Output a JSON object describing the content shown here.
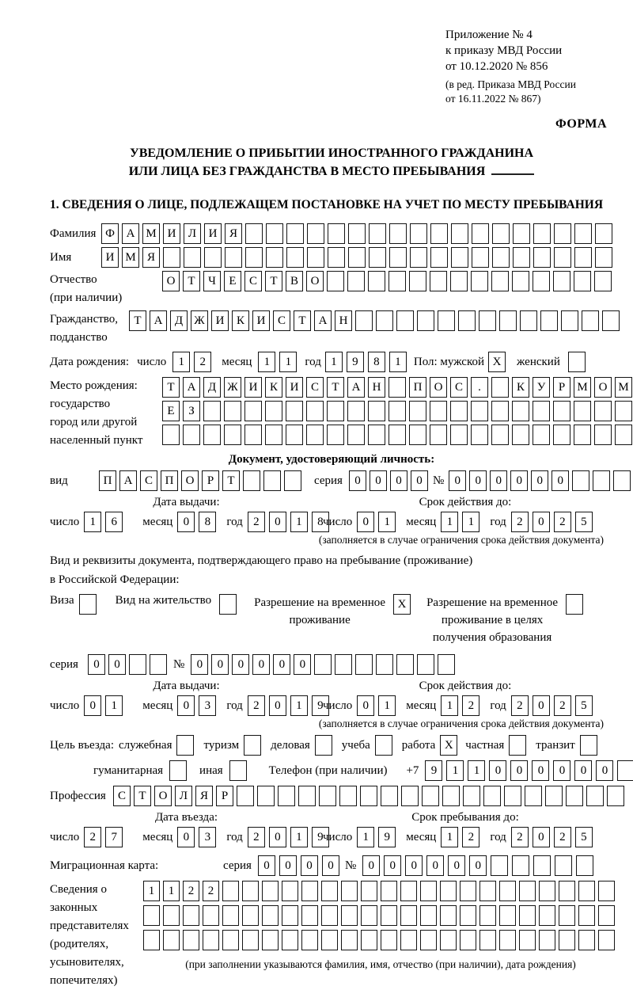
{
  "header": {
    "lines": [
      "Приложение № 4",
      "к приказу МВД России",
      "от 10.12.2020 № 856"
    ],
    "amendment_lines": [
      "(в ред. Приказа МВД России",
      "от 16.11.2022 № 867)"
    ],
    "form_label": "ФОРМА"
  },
  "title": {
    "line1": "УВЕДОМЛЕНИЕ О ПРИБЫТИИ ИНОСТРАННОГО ГРАЖДАНИНА",
    "line2": "ИЛИ ЛИЦА БЕЗ ГРАЖДАНСТВА В МЕСТО ПРЕБЫВАНИЯ"
  },
  "section1_heading": "1. СВЕДЕНИЯ О ЛИЦЕ, ПОДЛЕЖАЩЕМ ПОСТАНОВКЕ НА УЧЕТ ПО МЕСТУ ПРЕБЫВАНИЯ",
  "labels": {
    "surname": "Фамилия",
    "given_name": "Имя",
    "patronymic_lines": [
      "Отчество",
      "(при наличии)"
    ],
    "citizenship_lines": [
      "Гражданство,",
      "подданство"
    ],
    "birth_date": "Дата рождения:",
    "day": "число",
    "month": "месяц",
    "year": "год",
    "gender": "Пол: мужской",
    "female": "женский",
    "birth_place_lines": [
      "Место рождения:",
      "государство",
      "город или другой",
      "населенный пункт"
    ],
    "identity_doc_heading": "Документ, удостоверяющий личность:",
    "doc_kind": "вид",
    "series": "серия",
    "number": "№",
    "issue_date": "Дата выдачи:",
    "valid_until": "Срок действия до:",
    "validity_note": "(заполняется в случае ограничения срока действия документа)",
    "residence_doc_lines": [
      "Вид и реквизиты документа, подтверждающего право на пребывание (проживание)",
      "в Российской Федерации:"
    ],
    "visa": "Виза",
    "residence_permit": "Вид на жительство",
    "temp_residence_lines": [
      "Разрешение на временное",
      "проживание"
    ],
    "temp_residence_edu_lines": [
      "Разрешение на временное",
      "проживание в целях",
      "получения образования"
    ],
    "visit_purpose": "Цель въезда:",
    "purpose_official": "служебная",
    "purpose_tourism": "туризм",
    "purpose_business": "деловая",
    "purpose_study": "учеба",
    "purpose_work": "работа",
    "purpose_private": "частная",
    "purpose_transit": "транзит",
    "purpose_humanitarian": "гуманитарная",
    "purpose_other": "иная",
    "phone": "Телефон (при наличии)",
    "phone_prefix": "+7",
    "profession": "Профессия",
    "entry_date": "Дата въезда:",
    "stay_until": "Срок пребывания до:",
    "migration_card": "Миграционная карта:",
    "legal_rep_lines": [
      "Сведения о",
      "законных",
      "представителях",
      "(родителях,",
      "усыновителях,",
      "попечителях)"
    ],
    "legal_rep_note": "(при заполнении указываются фамилия, имя, отчество (при наличии), дата рождения)"
  },
  "fields": {
    "surname": {
      "value": "ФАМИЛИЯ",
      "count": 25
    },
    "given_name": {
      "value": "ИМЯ",
      "count": 25
    },
    "patronymic": {
      "value": "ОТЧЕСТВО",
      "count": 22
    },
    "citizenship": {
      "value": "ТАДЖИКИСТАН",
      "count": 24
    },
    "birth_date": {
      "day": "12",
      "month": "11",
      "year": "1981"
    },
    "gender": {
      "male": true,
      "female": false
    },
    "birth_place_row1": {
      "value": "ТАДЖИКИСТАН ПОС. КУРМОМБ",
      "count": 24
    },
    "birth_place_row2": {
      "value": "ЕЗ",
      "count": 24
    },
    "birth_place_row3": {
      "value": "",
      "count": 24
    },
    "identity_doc": {
      "kind": {
        "value": "ПАСПОРТ",
        "count": 10
      },
      "series": {
        "value": "0000",
        "count": 4
      },
      "number": {
        "value": "000000",
        "count": 11
      },
      "issue_date": {
        "day": "16",
        "month": "08",
        "year": "2018"
      },
      "expiry_date": {
        "day": "01",
        "month": "11",
        "year": "2025"
      }
    },
    "residence_doc": {
      "visa": false,
      "residence_permit": false,
      "temp_residence_permit": true,
      "temp_residence_education": false,
      "series": {
        "value": "00",
        "count": 4
      },
      "number": {
        "value": "000000",
        "count": 13
      },
      "issue_date": {
        "day": "01",
        "month": "03",
        "year": "2019"
      },
      "expiry_date": {
        "day": "01",
        "month": "12",
        "year": "2025"
      }
    },
    "visit_purpose": {
      "official": false,
      "tourism": false,
      "business": false,
      "study": false,
      "work": true,
      "private": false,
      "transit": false,
      "humanitarian": false,
      "other": false
    },
    "phone": {
      "value": "911000000",
      "count": 10
    },
    "profession": {
      "value": "СТОЛЯР",
      "count": 25
    },
    "entry_date": {
      "day": "27",
      "month": "03",
      "year": "2019"
    },
    "stay_until": {
      "day": "19",
      "month": "12",
      "year": "2025"
    },
    "migration_card": {
      "series": {
        "value": "0000",
        "count": 4
      },
      "number": {
        "value": "000000",
        "count": 11
      }
    },
    "legal_representatives": {
      "row1": {
        "value": "1122",
        "count": 24
      },
      "row2": {
        "value": "",
        "count": 24
      },
      "row3": {
        "value": "",
        "count": 24
      }
    }
  }
}
